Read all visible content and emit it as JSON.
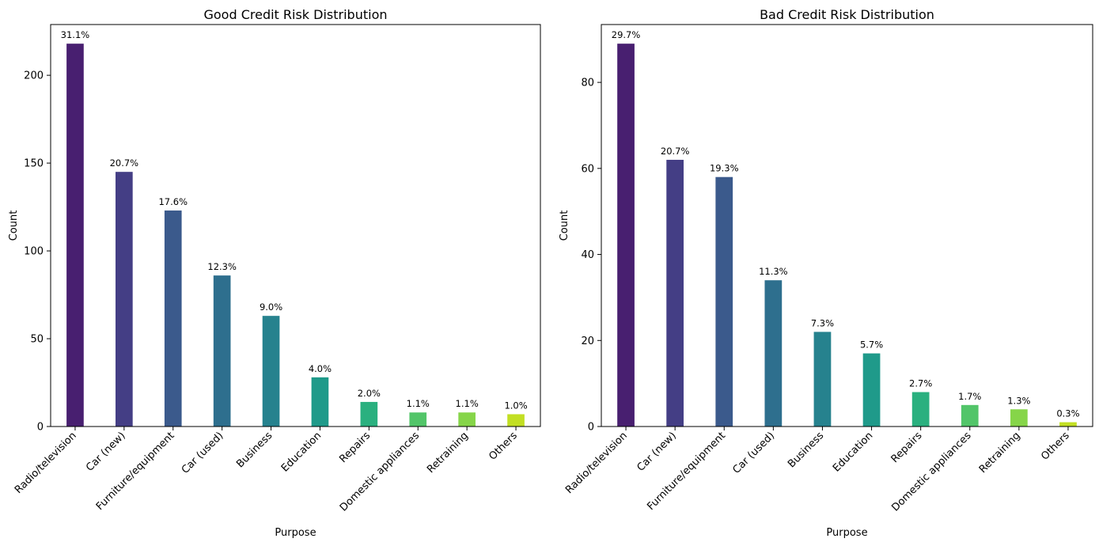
{
  "chart_data": [
    {
      "type": "bar",
      "title": "Good Credit Risk Distribution",
      "xlabel": "Purpose",
      "ylabel": "Count",
      "categories": [
        "Radio/television",
        "Car (new)",
        "Furniture/equipment",
        "Car (used)",
        "Business",
        "Education",
        "Repairs",
        "Domestic appliances",
        "Retraining",
        "Others"
      ],
      "values": [
        218,
        145,
        123,
        86,
        63,
        28,
        14,
        8,
        8,
        7
      ],
      "data_labels": [
        "31.1%",
        "20.7%",
        "17.6%",
        "12.3%",
        "9.0%",
        "4.0%",
        "2.0%",
        "1.1%",
        "1.1%",
        "1.0%"
      ],
      "ylim": [
        0,
        228.9
      ],
      "yticks": [
        0,
        50,
        100,
        150,
        200
      ],
      "grid": false,
      "colors": [
        "#481f70",
        "#443e85",
        "#3b5a8c",
        "#2e6f8e",
        "#26828e",
        "#1f9a8a",
        "#2ab07f",
        "#52c569",
        "#86d549",
        "#c2df23"
      ]
    },
    {
      "type": "bar",
      "title": "Bad Credit Risk Distribution",
      "xlabel": "Purpose",
      "ylabel": "Count",
      "categories": [
        "Radio/television",
        "Car (new)",
        "Furniture/equipment",
        "Car (used)",
        "Business",
        "Education",
        "Repairs",
        "Domestic appliances",
        "Retraining",
        "Others"
      ],
      "values": [
        89,
        62,
        58,
        34,
        22,
        17,
        8,
        5,
        4,
        1
      ],
      "data_labels": [
        "29.7%",
        "20.7%",
        "19.3%",
        "11.3%",
        "7.3%",
        "5.7%",
        "2.7%",
        "1.7%",
        "1.3%",
        "0.3%"
      ],
      "ylim": [
        0,
        93.45
      ],
      "yticks": [
        0,
        20,
        40,
        60,
        80
      ],
      "grid": false,
      "colors": [
        "#481f70",
        "#443e85",
        "#3b5a8c",
        "#2e6f8e",
        "#26828e",
        "#1f9a8a",
        "#2ab07f",
        "#52c569",
        "#86d549",
        "#c2df23"
      ]
    }
  ]
}
